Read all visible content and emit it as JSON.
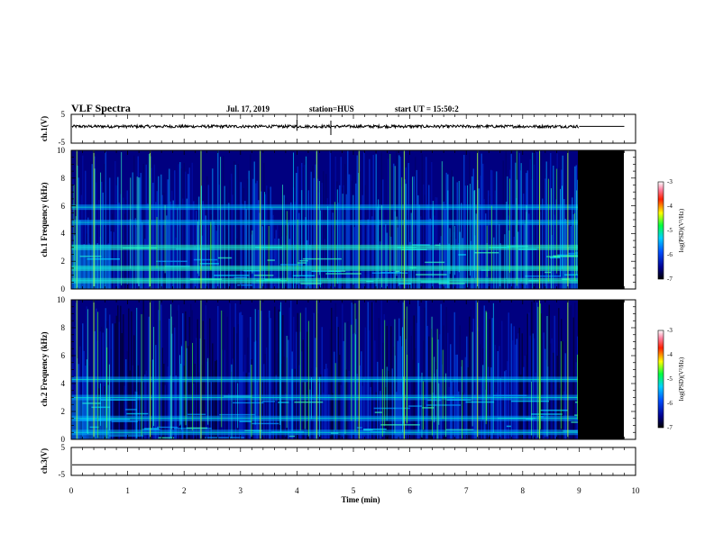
{
  "header": {
    "title": "VLF Spectra",
    "date": "Jul. 17, 2019",
    "station": "station=HUS",
    "start": "start UT = 15:50:2"
  },
  "chart_data": [
    {
      "type": "line",
      "panel": "ch1-waveform",
      "ylabel": "ch.1(V)",
      "ylim": [
        -5,
        5
      ],
      "xlim": [
        0,
        10
      ],
      "yticks": [
        "5",
        "-5"
      ],
      "data_end_min": 9.0,
      "baseline_v": 0.8,
      "spikes_min": [
        4.0,
        4.6
      ]
    },
    {
      "type": "heatmap",
      "panel": "ch1-spectrogram",
      "ylabel": "ch.1 Frequency (kHz)",
      "ylim": [
        0,
        10
      ],
      "xlim": [
        0,
        10
      ],
      "yticks": [
        "0",
        "2",
        "4",
        "6",
        "8",
        "10"
      ],
      "data_end_min": 9.0,
      "colorbar": {
        "label": "log(PSD)(V²/Hz)",
        "range": [
          -7,
          -3
        ],
        "ticks": [
          "-3",
          "-4",
          "-5",
          "-6",
          "-7"
        ]
      },
      "bands_khz": [
        0.6,
        1.5,
        3.0,
        4.8,
        5.9
      ],
      "sferics_min": [
        0.1,
        0.4,
        1.4,
        2.3,
        3.35,
        4.35,
        5.1,
        5.9,
        7.2,
        8.3,
        8.8
      ]
    },
    {
      "type": "heatmap",
      "panel": "ch2-spectrogram",
      "ylabel": "ch.2 Frequency (kHz)",
      "ylim": [
        0,
        10
      ],
      "xlim": [
        0,
        10
      ],
      "yticks": [
        "0",
        "2",
        "4",
        "6",
        "8",
        "10"
      ],
      "data_end_min": 9.0,
      "colorbar": {
        "label": "log(PSD)(V²/Hz)",
        "range": [
          -7,
          -3
        ],
        "ticks": [
          "-3",
          "-4",
          "-5",
          "-6",
          "-7"
        ]
      },
      "bands_khz": [
        0.5,
        1.5,
        3.0,
        4.3
      ],
      "sferics_min": [
        0.1,
        0.4,
        1.4,
        2.3,
        3.35,
        4.35,
        5.1,
        5.9,
        7.2,
        8.3,
        8.8
      ]
    },
    {
      "type": "line",
      "panel": "ch3-waveform",
      "ylabel": "ch.3(V)",
      "xlabel": "Time (min)",
      "ylim": [
        -5,
        5
      ],
      "xlim": [
        0,
        10
      ],
      "yticks": [
        "5",
        "-5"
      ],
      "xticks": [
        "0",
        "1",
        "2",
        "3",
        "4",
        "5",
        "6",
        "7",
        "8",
        "9",
        "10"
      ],
      "baseline_v": -1.2
    }
  ]
}
